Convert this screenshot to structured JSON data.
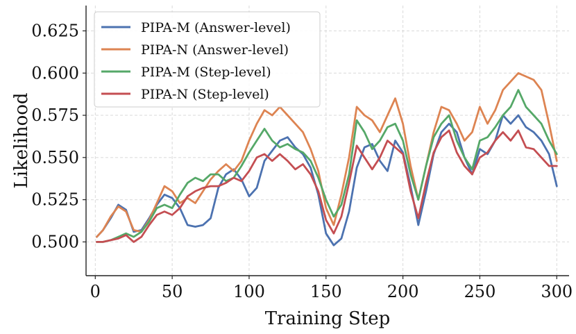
{
  "chart_data": {
    "type": "line",
    "xlabel": "Training Step",
    "ylabel": "Likelihood",
    "xlim": [
      -6,
      308
    ],
    "ylim": [
      0.48,
      0.64
    ],
    "xticks": [
      0,
      50,
      100,
      150,
      200,
      250,
      300
    ],
    "xtick_labels": [
      "0",
      "50",
      "100",
      "150",
      "200",
      "250",
      "300"
    ],
    "yticks": [
      0.5,
      0.525,
      0.55,
      0.575,
      0.6,
      0.625
    ],
    "ytick_labels": [
      "0.500",
      "0.525",
      "0.550",
      "0.575",
      "0.600",
      "0.625"
    ],
    "grid": true,
    "legend_position": "top-left",
    "x": [
      1,
      5,
      10,
      15,
      20,
      25,
      30,
      35,
      40,
      45,
      50,
      55,
      60,
      65,
      70,
      75,
      80,
      85,
      90,
      95,
      100,
      105,
      110,
      115,
      120,
      125,
      130,
      135,
      140,
      145,
      150,
      155,
      160,
      165,
      170,
      175,
      180,
      185,
      190,
      195,
      200,
      205,
      210,
      215,
      220,
      225,
      230,
      235,
      240,
      245,
      250,
      255,
      260,
      265,
      270,
      275,
      280,
      285,
      290,
      295,
      300
    ],
    "series": [
      {
        "name": "PIPA-M (Answer-level)",
        "color": "#4c72b0",
        "values": [
          0.503,
          0.507,
          0.514,
          0.522,
          0.519,
          0.506,
          0.507,
          0.514,
          0.522,
          0.528,
          0.526,
          0.52,
          0.51,
          0.509,
          0.51,
          0.514,
          0.532,
          0.54,
          0.543,
          0.537,
          0.527,
          0.532,
          0.548,
          0.554,
          0.56,
          0.562,
          0.556,
          0.552,
          0.544,
          0.528,
          0.505,
          0.498,
          0.502,
          0.518,
          0.544,
          0.556,
          0.558,
          0.548,
          0.542,
          0.56,
          0.553,
          0.533,
          0.51,
          0.53,
          0.552,
          0.565,
          0.57,
          0.565,
          0.55,
          0.54,
          0.555,
          0.552,
          0.56,
          0.575,
          0.57,
          0.575,
          0.568,
          0.565,
          0.56,
          0.552,
          0.533
        ]
      },
      {
        "name": "PIPA-N (Answer-level)",
        "color": "#dd8452",
        "values": [
          0.503,
          0.507,
          0.515,
          0.521,
          0.518,
          0.507,
          0.506,
          0.513,
          0.523,
          0.533,
          0.53,
          0.523,
          0.526,
          0.523,
          0.53,
          0.537,
          0.542,
          0.546,
          0.542,
          0.548,
          0.56,
          0.57,
          0.578,
          0.575,
          0.58,
          0.575,
          0.57,
          0.565,
          0.555,
          0.542,
          0.52,
          0.51,
          0.528,
          0.55,
          0.58,
          0.575,
          0.572,
          0.565,
          0.575,
          0.585,
          0.57,
          0.545,
          0.525,
          0.545,
          0.565,
          0.58,
          0.578,
          0.57,
          0.56,
          0.565,
          0.58,
          0.57,
          0.578,
          0.59,
          0.595,
          0.6,
          0.598,
          0.596,
          0.59,
          0.57,
          0.548
        ]
      },
      {
        "name": "PIPA-M (Step-level)",
        "color": "#55a868",
        "values": [
          0.5,
          0.5,
          0.501,
          0.503,
          0.505,
          0.503,
          0.506,
          0.512,
          0.52,
          0.522,
          0.52,
          0.528,
          0.535,
          0.538,
          0.536,
          0.54,
          0.54,
          0.536,
          0.538,
          0.545,
          0.553,
          0.56,
          0.567,
          0.56,
          0.556,
          0.558,
          0.555,
          0.553,
          0.548,
          0.538,
          0.525,
          0.515,
          0.522,
          0.54,
          0.572,
          0.565,
          0.555,
          0.56,
          0.568,
          0.57,
          0.56,
          0.54,
          0.525,
          0.545,
          0.562,
          0.57,
          0.575,
          0.56,
          0.55,
          0.543,
          0.56,
          0.562,
          0.568,
          0.575,
          0.58,
          0.59,
          0.58,
          0.575,
          0.57,
          0.56,
          0.552
        ]
      },
      {
        "name": "PIPA-N (Step-level)",
        "color": "#c44e52",
        "values": [
          0.5,
          0.5,
          0.501,
          0.502,
          0.504,
          0.5,
          0.503,
          0.51,
          0.516,
          0.518,
          0.516,
          0.52,
          0.527,
          0.53,
          0.532,
          0.533,
          0.533,
          0.535,
          0.538,
          0.536,
          0.542,
          0.55,
          0.552,
          0.548,
          0.552,
          0.548,
          0.543,
          0.546,
          0.54,
          0.53,
          0.513,
          0.505,
          0.515,
          0.535,
          0.557,
          0.55,
          0.543,
          0.55,
          0.56,
          0.556,
          0.552,
          0.53,
          0.514,
          0.535,
          0.553,
          0.562,
          0.566,
          0.553,
          0.545,
          0.54,
          0.55,
          0.553,
          0.56,
          0.565,
          0.56,
          0.566,
          0.556,
          0.555,
          0.55,
          0.545,
          0.545
        ]
      }
    ]
  }
}
